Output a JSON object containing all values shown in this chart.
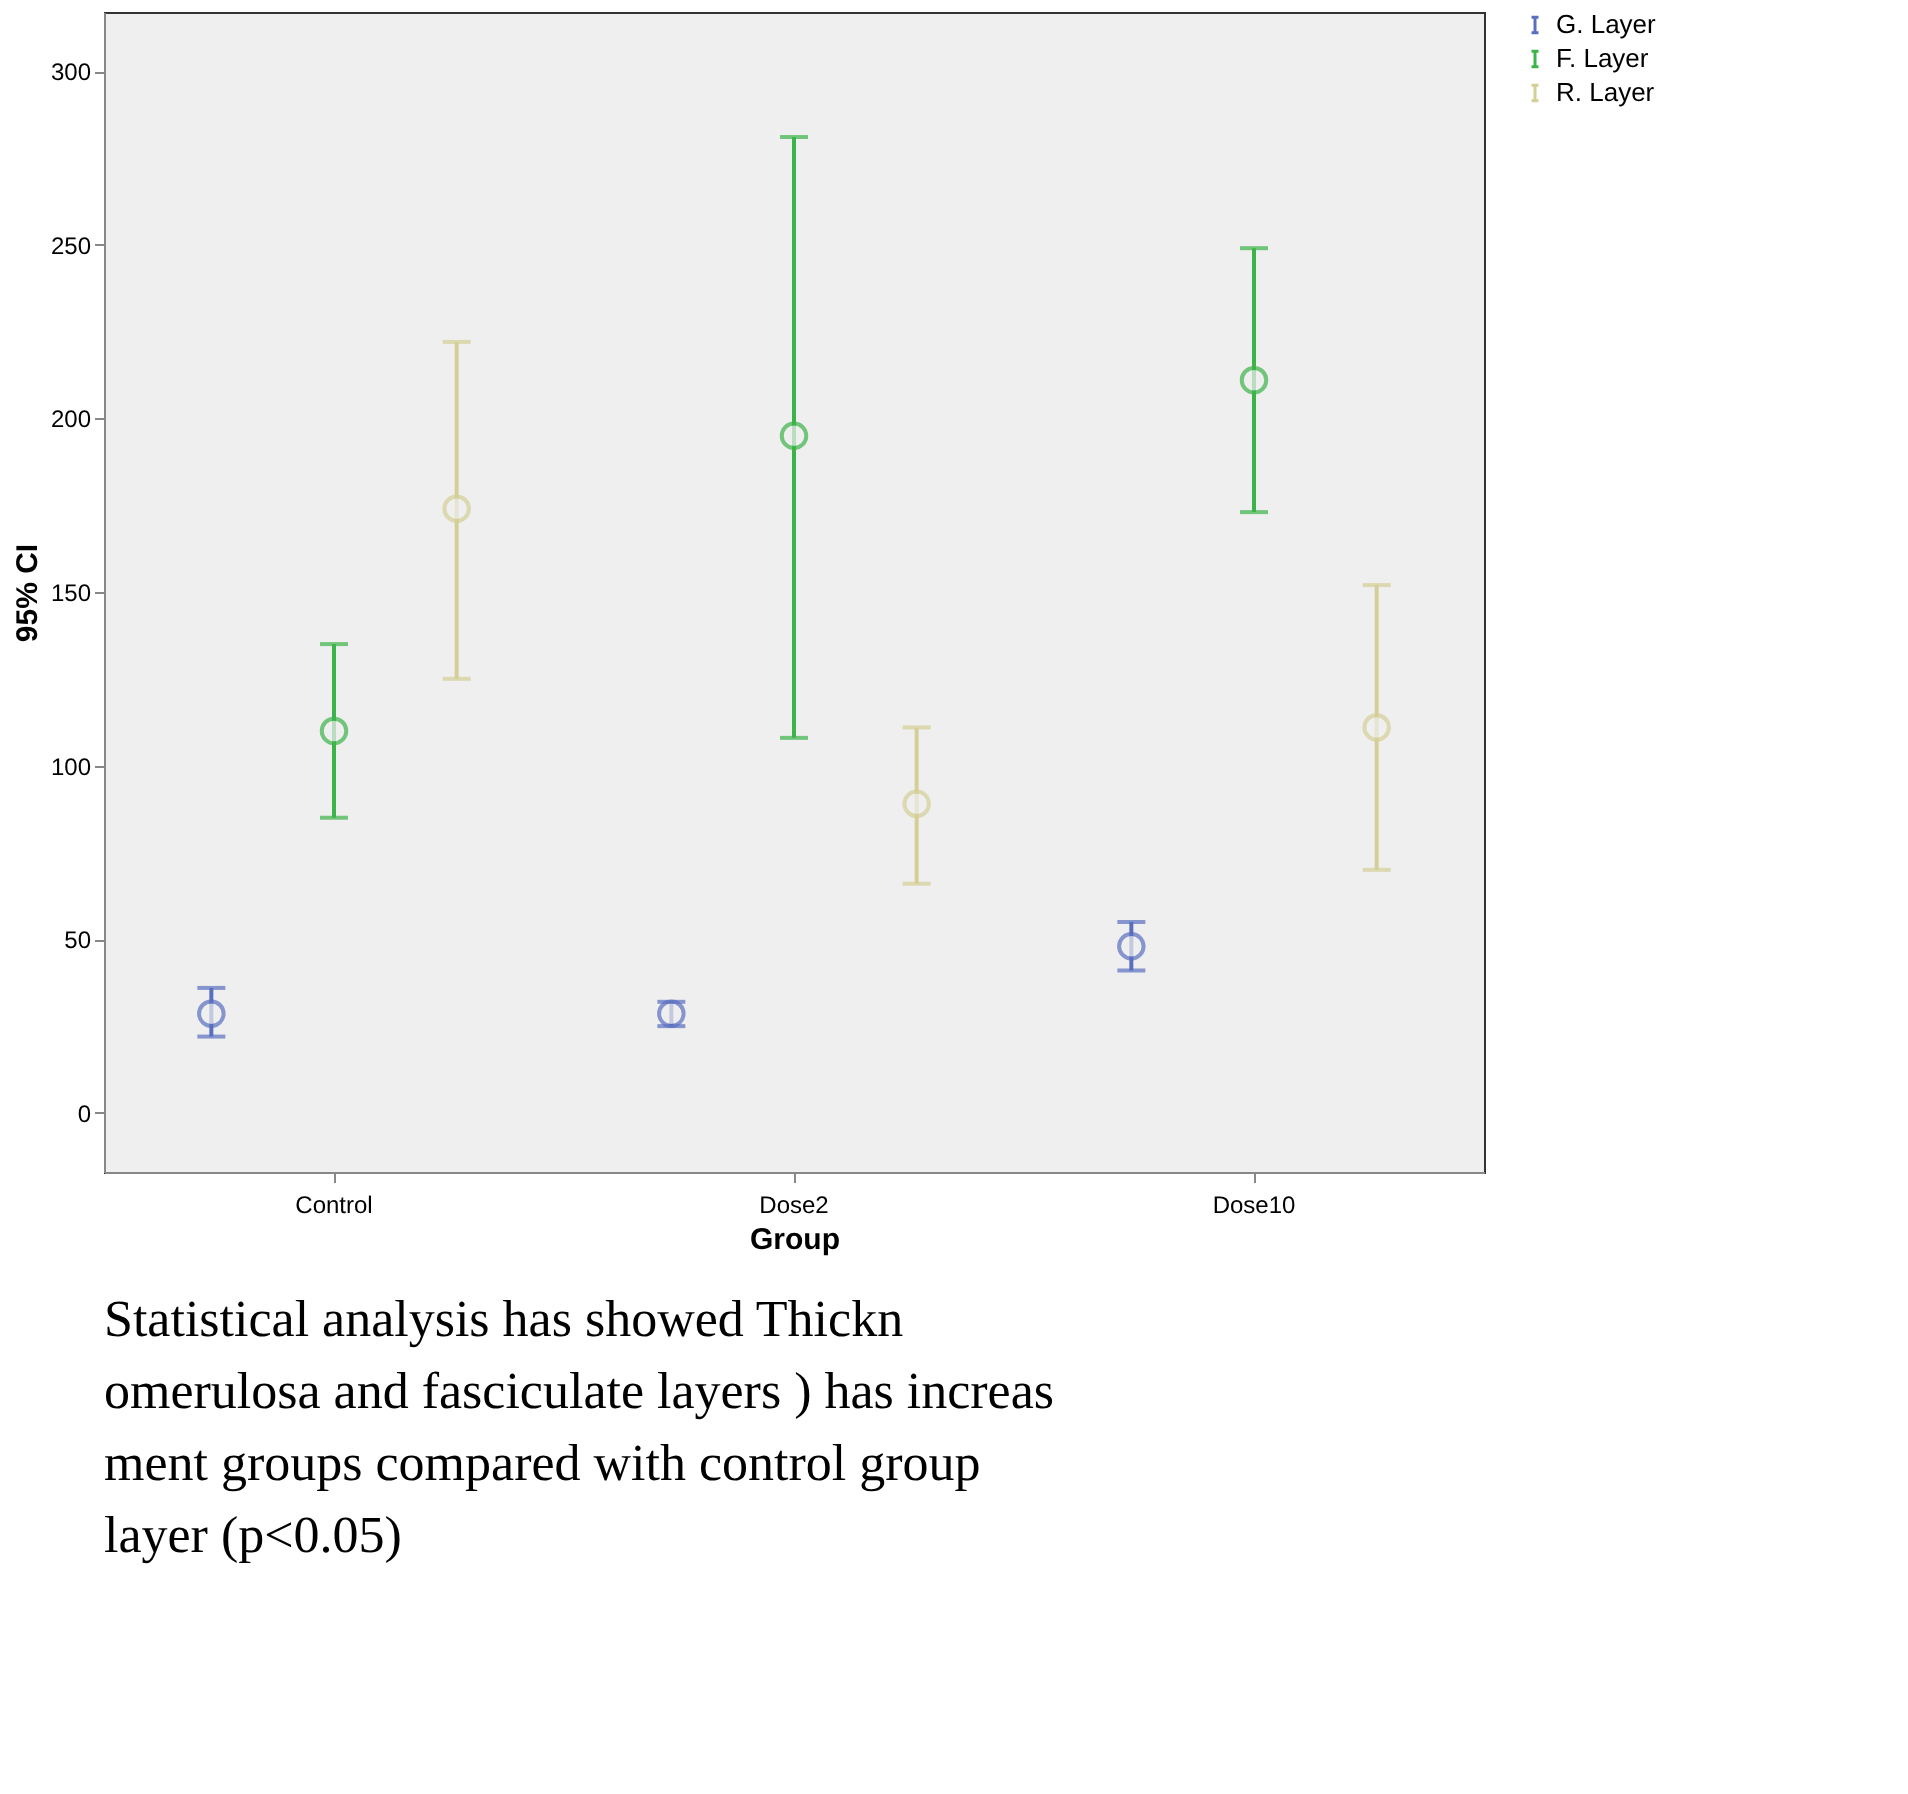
{
  "chart_data": {
    "type": "scatter",
    "xlabel": "Group",
    "ylabel": "95% CI",
    "categories": [
      "Control",
      "Dose2",
      "Dose10"
    ],
    "series": [
      {
        "name": "G. Layer",
        "color": "#5a6fc0",
        "values": [
          28.6,
          28.6,
          48
        ],
        "errors": [
          [
            22,
            36
          ],
          [
            25,
            32
          ],
          [
            41,
            55
          ]
        ]
      },
      {
        "name": "F. Layer",
        "color": "#3cb44a",
        "values": [
          110,
          195,
          211
        ],
        "errors": [
          [
            85,
            135
          ],
          [
            108,
            281
          ],
          [
            173,
            249
          ]
        ]
      },
      {
        "name": "R. Layer",
        "color": "#d4cf96",
        "values": [
          174,
          89,
          111
        ],
        "errors": [
          [
            125,
            222
          ],
          [
            66,
            111
          ],
          [
            70,
            152
          ]
        ]
      }
    ],
    "ylim": [
      -17,
      317
    ],
    "yticks": [
      0,
      50,
      100,
      150,
      200,
      250,
      300
    ],
    "marker": "circle",
    "grid": false,
    "legend": "top right",
    "annotations": [
      "Statistical analysis has showed  Thickn",
      "omerulosa and fasciculate layers ) has increas",
      "ment groups compared with control group",
      "layer (p<0.05)"
    ]
  }
}
